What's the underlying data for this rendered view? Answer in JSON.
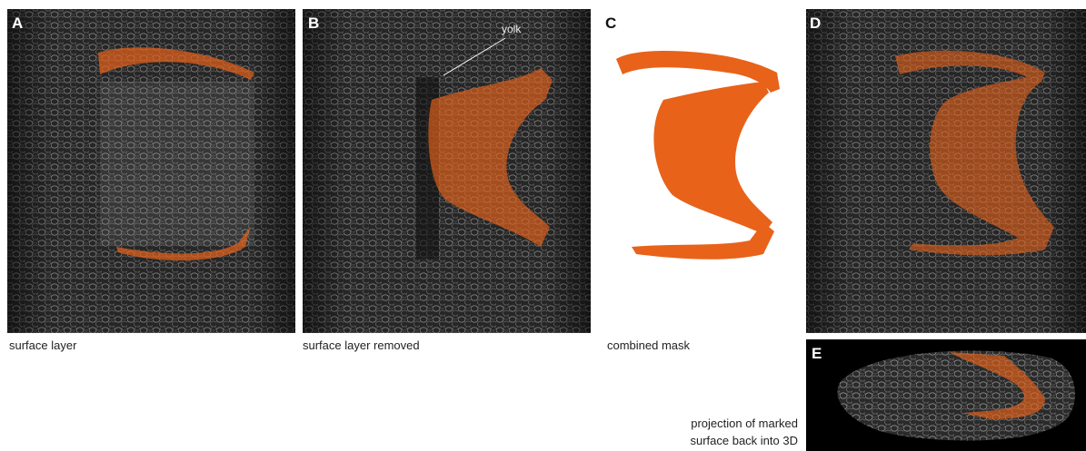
{
  "panels": [
    {
      "label": "A",
      "caption": "surface layer"
    },
    {
      "label": "B",
      "caption": "surface layer removed",
      "annotation": "yolk"
    },
    {
      "label": "C",
      "caption": "combined mask"
    },
    {
      "label": "D"
    },
    {
      "label": "E",
      "caption": [
        "projection of marked",
        "surface back into 3D"
      ]
    }
  ]
}
